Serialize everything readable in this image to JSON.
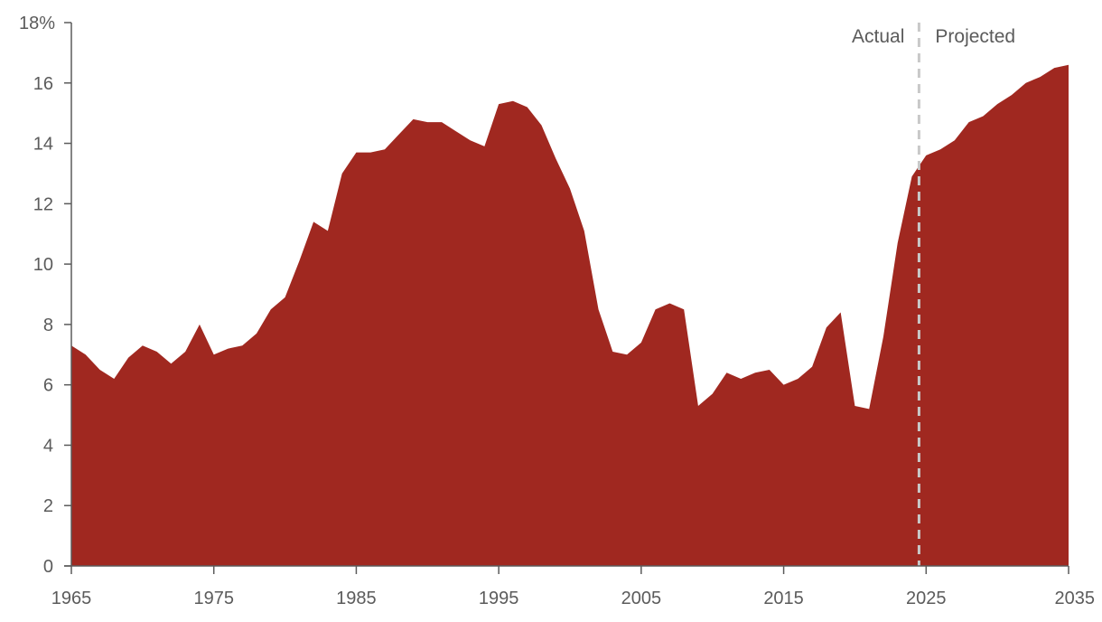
{
  "chart_data": {
    "type": "area",
    "title": "",
    "xlabel": "",
    "ylabel": "",
    "ylim": [
      0,
      18
    ],
    "xlim": [
      1965,
      2035
    ],
    "y_ticks": [
      0,
      2,
      4,
      6,
      8,
      10,
      12,
      14,
      16,
      18
    ],
    "y_tick_labels": [
      "0",
      "2",
      "4",
      "6",
      "8",
      "10",
      "12",
      "14",
      "16",
      "18%"
    ],
    "x_ticks": [
      1965,
      1975,
      1985,
      1995,
      2005,
      2015,
      2025,
      2035
    ],
    "x_tick_labels": [
      "1965",
      "1975",
      "1985",
      "1995",
      "2005",
      "2015",
      "2025",
      "2035"
    ],
    "grid": false,
    "fill_color": "#a02820",
    "divider": {
      "x": 2024.5,
      "color": "#c8c8c8",
      "style": "dashed"
    },
    "annotations": {
      "left_label": "Actual",
      "right_label": "Projected"
    },
    "x": [
      1965,
      1966,
      1967,
      1968,
      1969,
      1970,
      1971,
      1972,
      1973,
      1974,
      1975,
      1976,
      1977,
      1978,
      1979,
      1980,
      1981,
      1982,
      1983,
      1984,
      1985,
      1986,
      1987,
      1988,
      1989,
      1990,
      1991,
      1992,
      1993,
      1994,
      1995,
      1996,
      1997,
      1998,
      1999,
      2000,
      2001,
      2002,
      2003,
      2004,
      2005,
      2006,
      2007,
      2008,
      2009,
      2010,
      2011,
      2012,
      2013,
      2014,
      2015,
      2016,
      2017,
      2018,
      2019,
      2020,
      2021,
      2022,
      2023,
      2024,
      2025,
      2026,
      2027,
      2028,
      2029,
      2030,
      2031,
      2032,
      2033,
      2034,
      2035
    ],
    "values": [
      7.3,
      7.0,
      6.5,
      6.2,
      6.9,
      7.3,
      7.1,
      6.7,
      7.1,
      8.0,
      7.0,
      7.2,
      7.3,
      7.7,
      8.5,
      8.9,
      10.1,
      11.4,
      11.1,
      13.0,
      13.7,
      13.7,
      13.8,
      14.3,
      14.8,
      14.7,
      14.7,
      14.4,
      14.1,
      13.9,
      15.3,
      15.4,
      15.2,
      14.6,
      13.5,
      12.5,
      11.1,
      8.5,
      7.1,
      7.0,
      7.4,
      8.5,
      8.7,
      8.5,
      5.3,
      5.7,
      6.4,
      6.2,
      6.4,
      6.5,
      6.0,
      6.2,
      6.6,
      7.9,
      8.4,
      5.3,
      5.2,
      7.6,
      10.7,
      12.9,
      13.6,
      13.8,
      14.1,
      14.7,
      14.9,
      15.3,
      15.6,
      16.0,
      16.2,
      16.5,
      16.6
    ]
  }
}
